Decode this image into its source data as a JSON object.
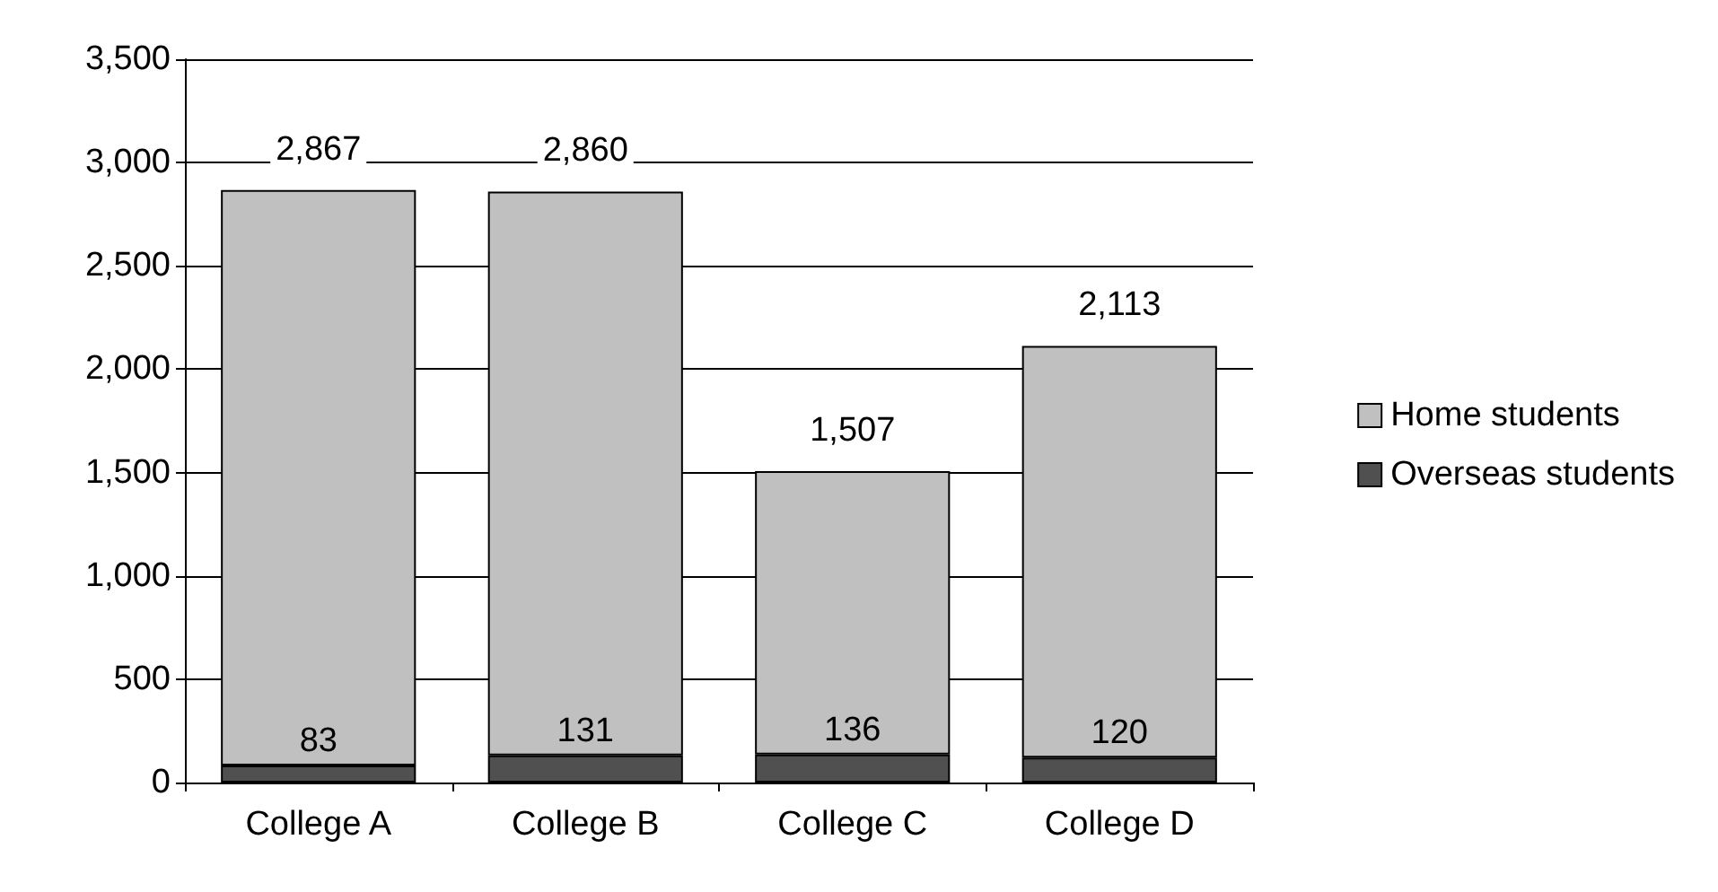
{
  "chart_data": {
    "type": "bar",
    "stacked": true,
    "categories": [
      "College A",
      "College B",
      "College C",
      "College D"
    ],
    "series": [
      {
        "name": "Overseas students",
        "color": "#505050",
        "values": [
          83,
          131,
          136,
          120
        ],
        "value_labels": [
          "83",
          "131",
          "136",
          "120"
        ]
      },
      {
        "name": "Home students",
        "color": "#c0c0c0",
        "values": [
          2784,
          2729,
          1371,
          1993
        ]
      }
    ],
    "totals": [
      "2,867",
      "2,860",
      "1,507",
      "2,113"
    ],
    "ylim": [
      0,
      3500
    ],
    "yticks": [
      {
        "value": 0,
        "label": "0"
      },
      {
        "value": 500,
        "label": "500"
      },
      {
        "value": 1000,
        "label": "1,000"
      },
      {
        "value": 1500,
        "label": "1,500"
      },
      {
        "value": 2000,
        "label": "2,000"
      },
      {
        "value": 2500,
        "label": "2,500"
      },
      {
        "value": 3000,
        "label": "3,000"
      },
      {
        "value": 3500,
        "label": "3,500"
      }
    ],
    "grid": "y",
    "legend": "right"
  }
}
